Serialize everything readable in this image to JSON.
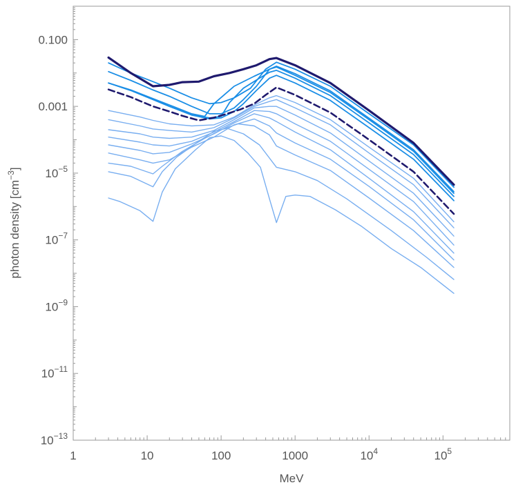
{
  "chart_data": {
    "type": "line",
    "title": "",
    "xlabel": "MeV",
    "ylabel_text": "photon density [cm",
    "ylabel_sup": "−3",
    "ylabel_close": "]",
    "xscale": "log",
    "yscale": "log",
    "xlim": [
      1,
      800000
    ],
    "ylim": [
      1e-13,
      1
    ],
    "grid": false,
    "legend": "none",
    "x_ticks": [
      {
        "value": 1,
        "base": "1",
        "sup": ""
      },
      {
        "value": 10,
        "base": "10",
        "sup": ""
      },
      {
        "value": 100,
        "base": "100",
        "sup": ""
      },
      {
        "value": 1000,
        "base": "1000",
        "sup": ""
      },
      {
        "value": 10000,
        "base": "10",
        "sup": "4"
      },
      {
        "value": 100000,
        "base": "10",
        "sup": "5"
      }
    ],
    "y_ticks": [
      {
        "value": 0.1,
        "base": "0.100",
        "sup": ""
      },
      {
        "value": 0.001,
        "base": "0.001",
        "sup": ""
      },
      {
        "value": 1e-05,
        "base": "10",
        "sup": "−5"
      },
      {
        "value": 1e-07,
        "base": "10",
        "sup": "−7"
      },
      {
        "value": 1e-09,
        "base": "10",
        "sup": "−9"
      },
      {
        "value": 1e-11,
        "base": "10",
        "sup": "−11"
      },
      {
        "value": 1e-13,
        "base": "10",
        "sup": "−13"
      }
    ],
    "series": [
      {
        "color": "#78aef0",
        "width": 1.4,
        "dash": false,
        "points": [
          [
            3,
            1.8e-06
          ],
          [
            4.3,
            1.4e-06
          ],
          [
            8,
            7.5e-07
          ],
          [
            12,
            3.6e-07
          ],
          [
            16,
            2.7e-06
          ],
          [
            24,
            1.35e-05
          ],
          [
            45,
            5e-05
          ],
          [
            70,
            0.000115
          ],
          [
            100,
            0.00013
          ],
          [
            150,
            9.5e-05
          ],
          [
            230,
            4e-05
          ],
          [
            340,
            1.5e-05
          ],
          [
            450,
            1.7e-06
          ],
          [
            560,
            3.3e-07
          ],
          [
            750,
            2e-06
          ],
          [
            1000,
            2.2e-06
          ],
          [
            1600,
            2e-06
          ],
          [
            3500,
            8e-07
          ],
          [
            8000,
            2.5e-07
          ],
          [
            20000,
            5.5e-08
          ],
          [
            50000,
            1.5e-08
          ],
          [
            140000,
            2.5e-09
          ]
        ]
      },
      {
        "color": "#78aef0",
        "width": 1.4,
        "dash": false,
        "points": [
          [
            3,
            1.1e-05
          ],
          [
            6,
            8e-06
          ],
          [
            12,
            3.9e-06
          ],
          [
            16,
            1.1e-05
          ],
          [
            25,
            3e-05
          ],
          [
            50,
            9e-05
          ],
          [
            80,
            0.00018
          ],
          [
            120,
            0.00022
          ],
          [
            200,
            0.00015
          ],
          [
            330,
            7e-05
          ],
          [
            560,
            1.5e-05
          ],
          [
            1000,
            1.1e-05
          ],
          [
            2000,
            6e-06
          ],
          [
            5000,
            1.7e-06
          ],
          [
            20000,
            1.9e-07
          ],
          [
            60000,
            3e-08
          ],
          [
            140000,
            6.5e-09
          ]
        ]
      },
      {
        "color": "#78aef0",
        "width": 1.4,
        "dash": false,
        "points": [
          [
            3,
            2e-05
          ],
          [
            6,
            1.6e-05
          ],
          [
            12,
            9.5e-06
          ],
          [
            16,
            1.6e-05
          ],
          [
            30,
            4.5e-05
          ],
          [
            60,
            0.00011
          ],
          [
            100,
            0.0002
          ],
          [
            170,
            0.0003
          ],
          [
            280,
            0.00026
          ],
          [
            450,
            0.00014
          ],
          [
            560,
            6.5e-05
          ],
          [
            1000,
            3.5e-05
          ],
          [
            3000,
            1.2e-05
          ],
          [
            10000,
            1.8e-06
          ],
          [
            40000,
            1.9e-07
          ],
          [
            140000,
            1.5e-08
          ]
        ]
      },
      {
        "color": "#78aef0",
        "width": 1.4,
        "dash": false,
        "points": [
          [
            3,
            4e-05
          ],
          [
            8,
            2.5e-05
          ],
          [
            12,
            2e-05
          ],
          [
            20,
            2.5e-05
          ],
          [
            40,
            6e-05
          ],
          [
            80,
            0.00012
          ],
          [
            150,
            0.00028
          ],
          [
            280,
            0.00042
          ],
          [
            450,
            0.00026
          ],
          [
            560,
            0.00016
          ],
          [
            1000,
            8e-05
          ],
          [
            3000,
            2.6e-05
          ],
          [
            10000,
            4e-06
          ],
          [
            40000,
            4e-07
          ],
          [
            140000,
            2.5e-08
          ]
        ]
      },
      {
        "color": "#78aef0",
        "width": 1.4,
        "dash": false,
        "points": [
          [
            3,
            7e-05
          ],
          [
            8,
            4.8e-05
          ],
          [
            12,
            3.8e-05
          ],
          [
            20,
            4.2e-05
          ],
          [
            40,
            7.5e-05
          ],
          [
            80,
            0.00015
          ],
          [
            150,
            0.00032
          ],
          [
            280,
            0.0006
          ],
          [
            450,
            0.00045
          ],
          [
            560,
            0.00035
          ],
          [
            1000,
            0.00017
          ],
          [
            3000,
            5e-05
          ],
          [
            10000,
            7e-06
          ],
          [
            40000,
            7e-07
          ],
          [
            140000,
            4e-08
          ]
        ]
      },
      {
        "color": "#78aef0",
        "width": 1.4,
        "dash": false,
        "points": [
          [
            3,
            0.00012
          ],
          [
            8,
            8.5e-05
          ],
          [
            12,
            7e-05
          ],
          [
            20,
            6.5e-05
          ],
          [
            40,
            9e-05
          ],
          [
            80,
            0.00017
          ],
          [
            150,
            0.00035
          ],
          [
            280,
            0.00075
          ],
          [
            450,
            0.0007
          ],
          [
            560,
            0.0006
          ],
          [
            1000,
            0.0003
          ],
          [
            3000,
            9e-05
          ],
          [
            10000,
            1.3e-05
          ],
          [
            40000,
            1.4e-06
          ],
          [
            140000,
            7e-08
          ]
        ]
      },
      {
        "color": "#78aef0",
        "width": 1.4,
        "dash": false,
        "points": [
          [
            3,
            0.0002
          ],
          [
            8,
            0.00015
          ],
          [
            12,
            0.00012
          ],
          [
            20,
            0.00011
          ],
          [
            40,
            0.00012
          ],
          [
            80,
            0.00019
          ],
          [
            150,
            0.0004
          ],
          [
            280,
            0.0009
          ],
          [
            450,
            0.001
          ],
          [
            560,
            0.001
          ],
          [
            1000,
            0.00055
          ],
          [
            3000,
            0.00016
          ],
          [
            10000,
            2.3e-05
          ],
          [
            40000,
            2.5e-06
          ],
          [
            140000,
            1.3e-07
          ]
        ]
      },
      {
        "color": "#78aef0",
        "width": 1.4,
        "dash": false,
        "points": [
          [
            3,
            0.0004
          ],
          [
            8,
            0.00026
          ],
          [
            12,
            0.00021
          ],
          [
            20,
            0.00019
          ],
          [
            40,
            0.00017
          ],
          [
            80,
            0.00023
          ],
          [
            150,
            0.00045
          ],
          [
            280,
            0.001
          ],
          [
            450,
            0.0014
          ],
          [
            560,
            0.0016
          ],
          [
            1000,
            0.0009
          ],
          [
            3000,
            0.00028
          ],
          [
            10000,
            4e-05
          ],
          [
            40000,
            4.5e-06
          ],
          [
            140000,
            2.3e-07
          ]
        ]
      },
      {
        "color": "#78aef0",
        "width": 1.4,
        "dash": false,
        "points": [
          [
            3,
            0.00075
          ],
          [
            8,
            0.00048
          ],
          [
            12,
            0.00038
          ],
          [
            20,
            0.0003
          ],
          [
            40,
            0.00026
          ],
          [
            80,
            0.00028
          ],
          [
            150,
            0.00048
          ],
          [
            280,
            0.0011
          ],
          [
            450,
            0.0018
          ],
          [
            560,
            0.0021
          ],
          [
            1000,
            0.0013
          ],
          [
            3000,
            0.0004
          ],
          [
            10000,
            6e-05
          ],
          [
            40000,
            7e-06
          ],
          [
            140000,
            3.5e-07
          ]
        ]
      },
      {
        "color": "#1a8ee6",
        "width": 1.8,
        "dash": false,
        "points": [
          [
            3,
            0.005
          ],
          [
            6,
            0.003
          ],
          [
            12,
            0.0016
          ],
          [
            20,
            0.001
          ],
          [
            40,
            0.00055
          ],
          [
            70,
            0.00042
          ],
          [
            100,
            0.00045
          ],
          [
            150,
            0.0007
          ],
          [
            200,
            0.0012
          ],
          [
            300,
            0.003
          ],
          [
            450,
            0.007
          ],
          [
            560,
            0.0085
          ],
          [
            1000,
            0.005
          ],
          [
            3000,
            0.0015
          ],
          [
            10000,
            0.00023
          ],
          [
            40000,
            2.6e-05
          ],
          [
            140000,
            1.5e-06
          ]
        ]
      },
      {
        "color": "#1a8ee6",
        "width": 1.8,
        "dash": false,
        "points": [
          [
            3,
            0.005
          ],
          [
            6,
            0.003
          ],
          [
            12,
            0.0016
          ],
          [
            20,
            0.001
          ],
          [
            40,
            0.00055
          ],
          [
            70,
            0.00045
          ],
          [
            100,
            0.0005
          ],
          [
            130,
            0.0013
          ],
          [
            200,
            0.0035
          ],
          [
            330,
            0.007
          ],
          [
            450,
            0.0105
          ],
          [
            560,
            0.012
          ],
          [
            1000,
            0.007
          ],
          [
            3000,
            0.0021
          ],
          [
            10000,
            0.00032
          ],
          [
            40000,
            3.6e-05
          ],
          [
            140000,
            2e-06
          ]
        ]
      },
      {
        "color": "#1a8ee6",
        "width": 1.8,
        "dash": false,
        "points": [
          [
            3,
            0.005
          ],
          [
            6,
            0.0031
          ],
          [
            12,
            0.0017
          ],
          [
            20,
            0.0011
          ],
          [
            40,
            0.0006
          ],
          [
            60,
            0.0005
          ],
          [
            80,
            0.0012
          ],
          [
            150,
            0.004
          ],
          [
            280,
            0.008
          ],
          [
            450,
            0.013
          ],
          [
            560,
            0.015
          ],
          [
            1000,
            0.0085
          ],
          [
            3000,
            0.0026
          ],
          [
            10000,
            0.0004
          ],
          [
            40000,
            4.5e-05
          ],
          [
            140000,
            2.5e-06
          ]
        ]
      },
      {
        "color": "#1a8ee6",
        "width": 1.8,
        "dash": false,
        "points": [
          [
            3,
            0.011
          ],
          [
            6,
            0.006
          ],
          [
            12,
            0.0031
          ],
          [
            20,
            0.002
          ],
          [
            40,
            0.001
          ],
          [
            70,
            0.0006
          ],
          [
            100,
            0.0006
          ],
          [
            150,
            0.0009
          ],
          [
            200,
            0.0016
          ],
          [
            300,
            0.004
          ],
          [
            450,
            0.013
          ],
          [
            560,
            0.016
          ],
          [
            1000,
            0.0095
          ],
          [
            3000,
            0.0029
          ],
          [
            10000,
            0.00044
          ],
          [
            40000,
            5e-05
          ],
          [
            140000,
            2.8e-06
          ]
        ]
      },
      {
        "color": "#1a8ee6",
        "width": 1.8,
        "dash": false,
        "points": [
          [
            3,
            0.02
          ],
          [
            6,
            0.01
          ],
          [
            12,
            0.0055
          ],
          [
            20,
            0.0035
          ],
          [
            40,
            0.0018
          ],
          [
            70,
            0.0012
          ],
          [
            100,
            0.0013
          ],
          [
            150,
            0.0018
          ],
          [
            250,
            0.0035
          ],
          [
            400,
            0.013
          ],
          [
            560,
            0.021
          ],
          [
            1000,
            0.013
          ],
          [
            3000,
            0.004
          ],
          [
            10000,
            0.0006
          ],
          [
            40000,
            7e-05
          ],
          [
            140000,
            3.8e-06
          ]
        ]
      },
      {
        "color": "#1f1a6e",
        "width": 2.6,
        "dash": true,
        "points": [
          [
            3,
            0.0032
          ],
          [
            6,
            0.0019
          ],
          [
            12,
            0.001
          ],
          [
            20,
            0.0007
          ],
          [
            30,
            0.00052
          ],
          [
            50,
            0.00038
          ],
          [
            80,
            0.00046
          ],
          [
            120,
            0.0006
          ],
          [
            180,
            0.0008
          ],
          [
            280,
            0.0012
          ],
          [
            400,
            0.0022
          ],
          [
            560,
            0.0037
          ],
          [
            1000,
            0.0022
          ],
          [
            3000,
            0.00065
          ],
          [
            10000,
            0.0001
          ],
          [
            40000,
            1.1e-05
          ],
          [
            140000,
            6e-07
          ]
        ]
      },
      {
        "color": "#1f1a6e",
        "width": 3.2,
        "dash": false,
        "points": [
          [
            3,
            0.029
          ],
          [
            6,
            0.01
          ],
          [
            12,
            0.004
          ],
          [
            20,
            0.0044
          ],
          [
            30,
            0.0053
          ],
          [
            50,
            0.0055
          ],
          [
            80,
            0.008
          ],
          [
            130,
            0.01
          ],
          [
            200,
            0.013
          ],
          [
            300,
            0.017
          ],
          [
            450,
            0.026
          ],
          [
            560,
            0.028
          ],
          [
            1000,
            0.017
          ],
          [
            3000,
            0.005
          ],
          [
            10000,
            0.00075
          ],
          [
            40000,
            8e-05
          ],
          [
            140000,
            4.5e-06
          ]
        ]
      }
    ]
  }
}
